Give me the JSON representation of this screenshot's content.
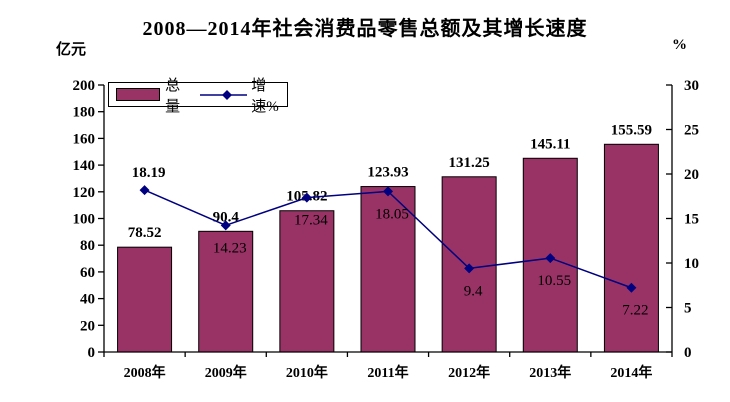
{
  "title": "2008—2014年社会消费品零售总额及其增长速度",
  "left_axis": {
    "unit": "亿元",
    "min": 0,
    "max": 200,
    "step": 20
  },
  "right_axis": {
    "unit": "%",
    "min": 0,
    "max": 30,
    "step": 5
  },
  "legend": {
    "bar_label": "总量",
    "line_label": "增速%"
  },
  "colors": {
    "bar": "#993366",
    "bar_border": "#000000",
    "line": "#000080",
    "text": "#000000",
    "axis": "#000000",
    "background": "#ffffff"
  },
  "chart_data": {
    "type": "bar+line",
    "title": "2008—2014年社会消费品零售总额及其增长速度",
    "categories": [
      "2008年",
      "2009年",
      "2010年",
      "2011年",
      "2012年",
      "2013年",
      "2014年"
    ],
    "series": [
      {
        "name": "总量",
        "type": "bar",
        "axis": "left",
        "values": [
          78.52,
          90.4,
          105.82,
          123.93,
          131.25,
          145.11,
          155.59
        ],
        "labels": [
          "78.52",
          "90.4",
          "105.82",
          "123.93",
          "131.25",
          "145.11",
          "155.59"
        ]
      },
      {
        "name": "增速%",
        "type": "line",
        "axis": "right",
        "values": [
          18.19,
          14.23,
          17.34,
          18.05,
          9.4,
          10.55,
          7.22
        ],
        "labels": [
          "18.19",
          "14.23",
          "17.34",
          "18.05",
          "9.4",
          "10.55",
          "7.22"
        ],
        "label_bold": [
          true,
          false,
          false,
          false,
          false,
          false,
          false
        ],
        "label_side": [
          "above",
          "below",
          "below",
          "below",
          "below",
          "below",
          "below"
        ]
      }
    ],
    "left_ylabel": "亿元",
    "right_ylabel": "%",
    "left_ylim": [
      0,
      200
    ],
    "right_ylim": [
      0,
      30
    ],
    "grid": false,
    "legend_position": "top-left-inside"
  }
}
